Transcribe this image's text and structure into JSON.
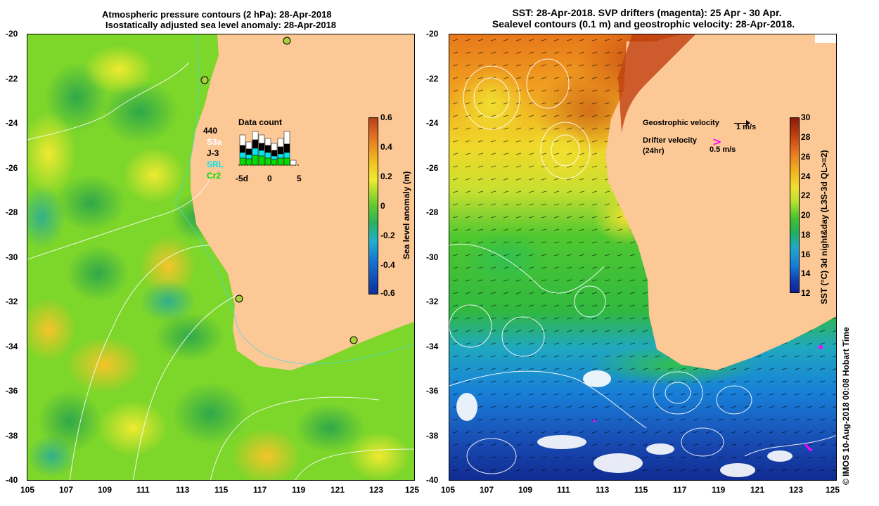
{
  "left_panel": {
    "title_line1": "Atmospheric pressure contours (2 hPa): 28-Apr-2018",
    "title_line2": "Isostatically adjusted sea level anomaly: 28-Apr-2018",
    "y_ticks": [
      "-20",
      "-22",
      "-24",
      "-26",
      "-28",
      "-30",
      "-32",
      "-34",
      "-36",
      "-38",
      "-40"
    ],
    "x_ticks": [
      "105",
      "107",
      "109",
      "111",
      "113",
      "115",
      "117",
      "119",
      "121",
      "123",
      "125"
    ],
    "colorbar_ticks": [
      "0.6",
      "0.4",
      "0.2",
      "0",
      "-0.2",
      "-0.4",
      "-0.6"
    ],
    "colorbar_label": "Sea level anomaly (m)",
    "data_count": {
      "title": "Data count",
      "satellites": [
        "440",
        "S3a",
        "J-3",
        "SRL",
        "Cr2"
      ],
      "satellite_colors": [
        "#000000",
        "#ffffff",
        "#000000",
        "#00e5ee",
        "#00dd00"
      ],
      "axis_ticks": [
        "-5d",
        "0",
        "5"
      ]
    }
  },
  "right_panel": {
    "title_line1": "SST: 28-Apr-2018. SVP drifters (magenta): 25 Apr - 30 Apr.",
    "title_line2": "Sealevel contours (0.1 m) and geostrophic velocity: 28-Apr-2018.",
    "y_ticks": [
      "-20",
      "-22",
      "-24",
      "-26",
      "-28",
      "-30",
      "-32",
      "-34",
      "-36",
      "-38",
      "-40"
    ],
    "x_ticks": [
      "105",
      "107",
      "109",
      "111",
      "113",
      "115",
      "117",
      "119",
      "121",
      "123",
      "125"
    ],
    "colorbar_ticks": [
      "30",
      "28",
      "26",
      "24",
      "22",
      "20",
      "18",
      "16",
      "14",
      "12"
    ],
    "colorbar_label": "SST (°C) 3d night&day (L3S-3d QL>=2)",
    "legend": {
      "geo_label": "Geostrophic velocity",
      "geo_scale": "1 m/s",
      "drifter_label_1": "Drifter velocity",
      "drifter_label_2": "(24hr)",
      "drifter_scale": "0.5 m/s"
    }
  },
  "footer_credit": "© IMOS 10-Aug-2018 00:08 Hobart Time",
  "colors": {
    "land": "#fcc895",
    "magenta": "#ff00ff"
  }
}
